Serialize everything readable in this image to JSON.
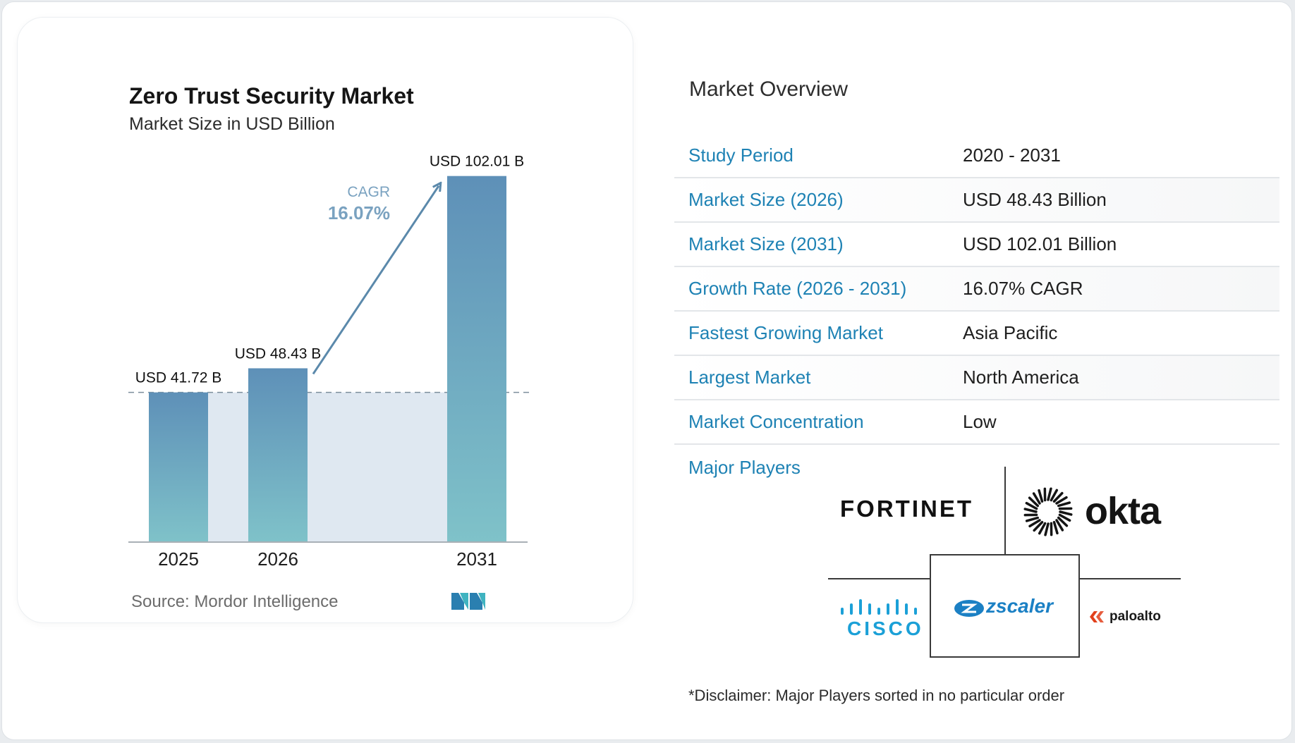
{
  "chart_data": {
    "type": "bar",
    "title": "Zero Trust Security Market",
    "subtitle": "Market Size in USD Billion",
    "categories": [
      "2025",
      "2026",
      "2031"
    ],
    "values": [
      41.72,
      48.43,
      102.01
    ],
    "value_labels": [
      "USD 41.72 B",
      "USD 48.43 B",
      "USD 102.01 B"
    ],
    "ylim": [
      0,
      110
    ],
    "grid": false,
    "cagr_label": "CAGR",
    "cagr_value": "16.07%",
    "colors": {
      "bar_top": "#5e90b8",
      "bar_bottom": "#7fc2c9",
      "area": "#dfe8f1",
      "arrow": "#5b89ab",
      "cagr_text": "#7aa2c0"
    }
  },
  "source": {
    "label": "Source:",
    "name": "Mordor Intelligence"
  },
  "overview": {
    "title": "Market Overview",
    "rows": [
      {
        "label": "Study Period",
        "value": "2020 - 2031"
      },
      {
        "label": "Market Size (2026)",
        "value": "USD 48.43 Billion"
      },
      {
        "label": "Market Size (2031)",
        "value": "USD 102.01 Billion"
      },
      {
        "label": "Growth Rate (2026 - 2031)",
        "value": "16.07% CAGR"
      },
      {
        "label": "Fastest Growing Market",
        "value": "Asia Pacific"
      },
      {
        "label": "Largest Market",
        "value": "North America"
      },
      {
        "label": "Market Concentration",
        "value": "Low"
      }
    ]
  },
  "players": {
    "title": "Major Players",
    "logos": [
      "FORTINET",
      "okta",
      "CISCO",
      "zscaler",
      "paloalto"
    ],
    "logo_icons": [
      "sunburst-icon",
      "cisco-bars-icon",
      "zscaler-cloud-icon",
      "paloalto-chevrons-icon"
    ]
  },
  "disclaimer": "*Disclaimer: Major Players sorted in no particular order",
  "accent_color": "#1e82b4"
}
